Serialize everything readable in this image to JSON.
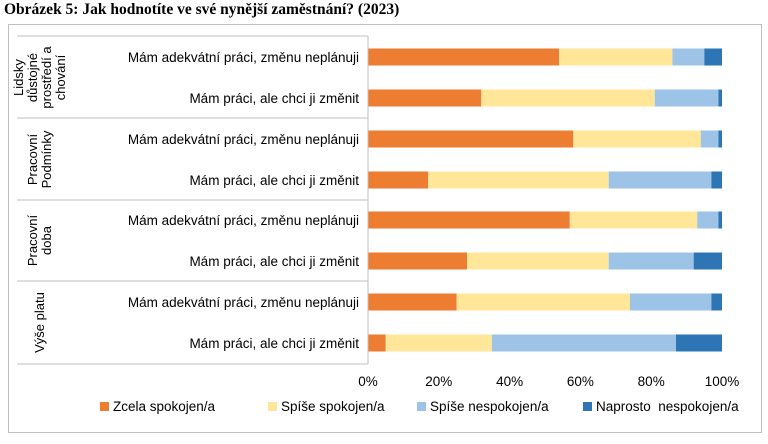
{
  "figure": {
    "title": "Obrázek 5: Jak hodnotíte ve své nynější zaměstnání? (2023)"
  },
  "chart_data": {
    "type": "bar",
    "orientation": "horizontal",
    "stacked": true,
    "xlim": [
      0,
      100
    ],
    "x_ticks": [
      "0%",
      "20%",
      "40%",
      "60%",
      "80%",
      "100%"
    ],
    "grid": false,
    "legend_position": "bottom",
    "groups": [
      {
        "label_lines": [
          "Lidsky",
          "důstojné",
          "prostředí a",
          "chování"
        ],
        "rows": [
          {
            "label": "Mám adekvátní práci, změnu neplánuji",
            "values": [
              54,
              32,
              9,
              5
            ]
          },
          {
            "label": "Mám práci, ale chci ji změnit",
            "values": [
              32,
              49,
              18,
              1
            ]
          }
        ]
      },
      {
        "label_lines": [
          "Pracovní",
          "Podmínky"
        ],
        "rows": [
          {
            "label": "Mám adekvátní práci, změnu neplánuji",
            "values": [
              58,
              36,
              5,
              1
            ]
          },
          {
            "label": "Mám práci, ale chci ji změnit",
            "values": [
              17,
              51,
              29,
              3
            ]
          }
        ]
      },
      {
        "label_lines": [
          "Pracovní",
          "doba"
        ],
        "rows": [
          {
            "label": "Mám adekvátní práci, změnu neplánuji",
            "values": [
              57,
              36,
              6,
              1
            ]
          },
          {
            "label": "Mám práci, ale chci ji změnit",
            "values": [
              28,
              40,
              24,
              8
            ]
          }
        ]
      },
      {
        "label_lines": [
          "Výše platu"
        ],
        "rows": [
          {
            "label": "Mám adekvátní práci, změnu neplánuji",
            "values": [
              25,
              49,
              23,
              3
            ]
          },
          {
            "label": "Mám práci, ale chci ji změnit",
            "values": [
              5,
              30,
              52,
              13
            ]
          }
        ]
      }
    ],
    "series": [
      {
        "name": "Zcela spokojen/a",
        "color": "#ED7D31"
      },
      {
        "name": "Spíše spokojen/a",
        "color": "#FFE699"
      },
      {
        "name": "Spíše nespokojen/a",
        "color": "#9DC3E6"
      },
      {
        "name": "Naprosto  nespokojen/a",
        "color": "#2E75B6"
      }
    ]
  }
}
